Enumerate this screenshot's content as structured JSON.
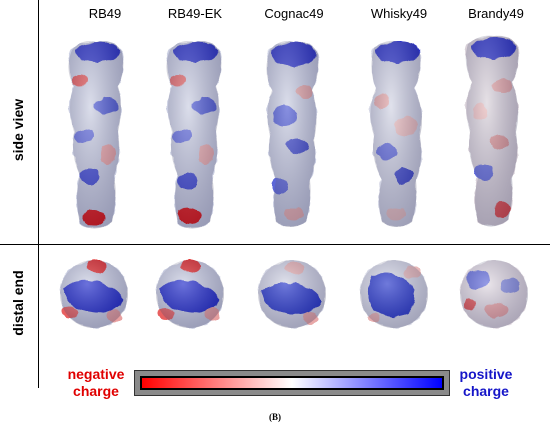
{
  "columns": [
    "RB49",
    "RB49-EK",
    "Cognac49",
    "Whisky49",
    "Brandy49"
  ],
  "rows": {
    "side": "side view",
    "distal": "distal end"
  },
  "legend": {
    "negative": "negative charge",
    "positive": "positive charge",
    "colors": {
      "negative": "#ff0000",
      "neutral": "#ffffff",
      "positive": "#0000ff"
    }
  },
  "caption": "(B)"
}
